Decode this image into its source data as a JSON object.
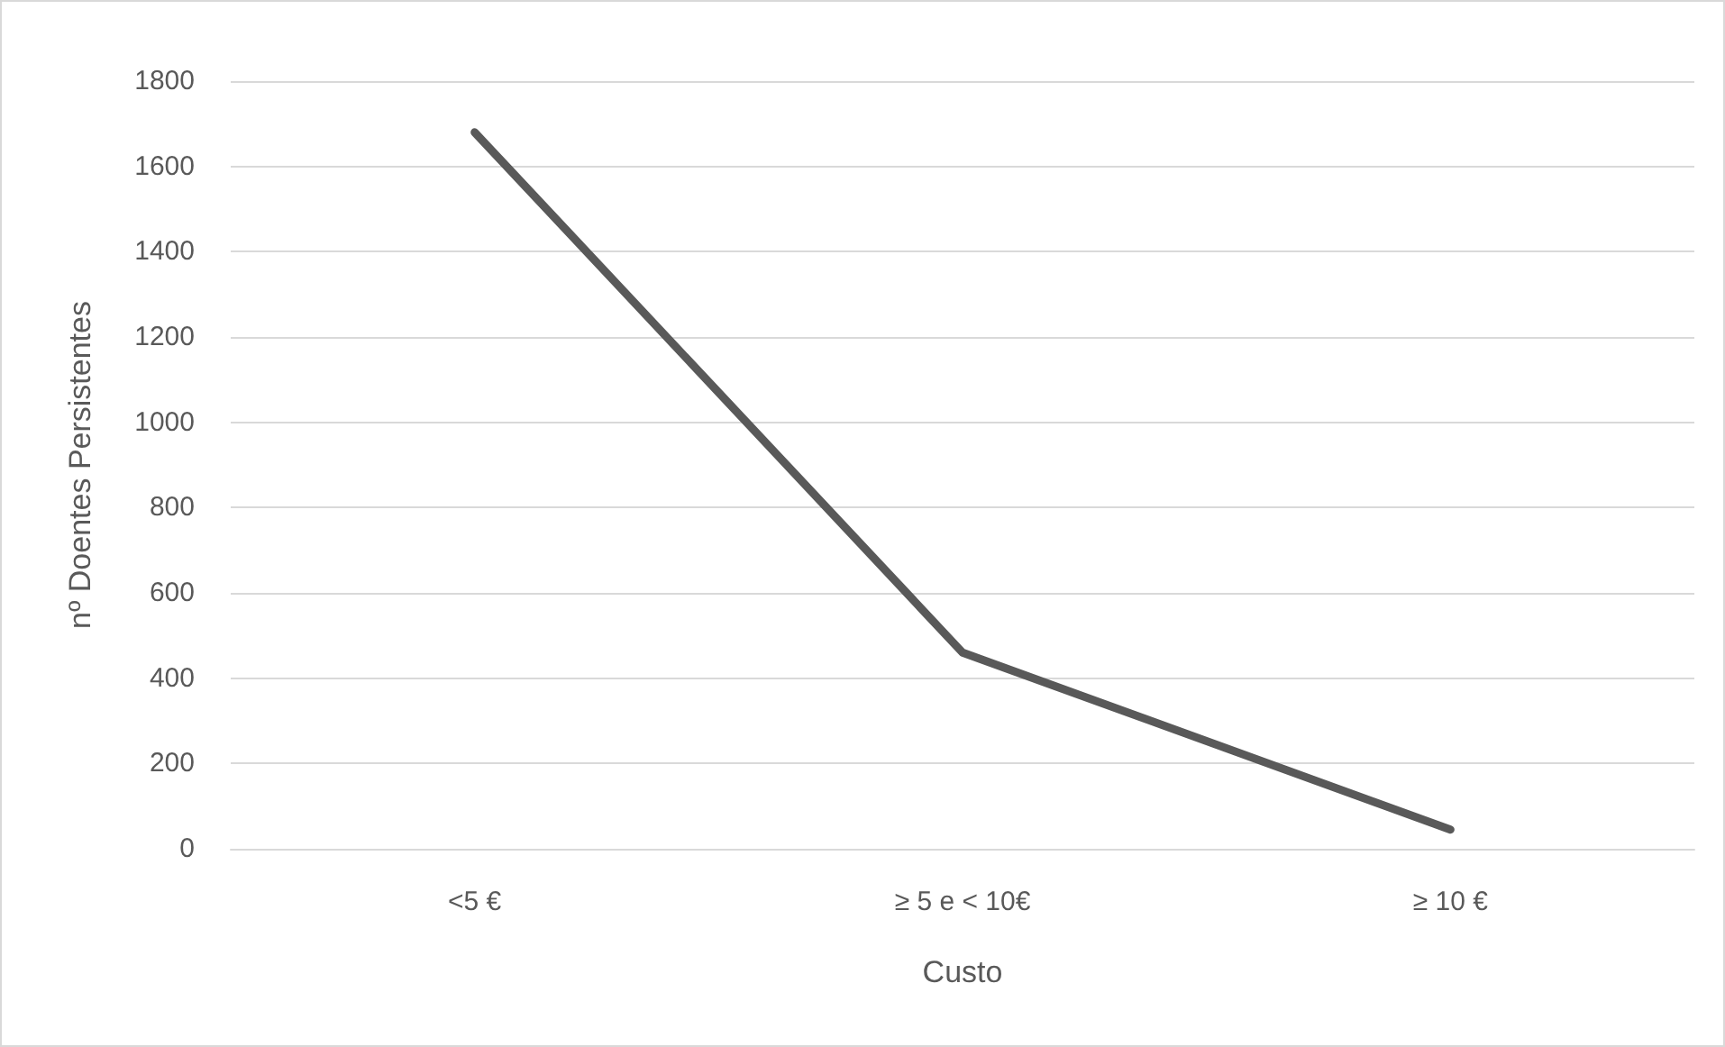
{
  "chart_data": {
    "type": "line",
    "xlabel": "Custo",
    "ylabel": "nº Doentes Persistentes",
    "categories": [
      "<5 €",
      "≥ 5 e < 10€",
      "≥ 10 €"
    ],
    "series": [
      {
        "color": "#595959",
        "values": [
          1680,
          460,
          45
        ]
      }
    ],
    "ylim": [
      0,
      1800
    ],
    "yticks": [
      0,
      200,
      400,
      600,
      800,
      1000,
      1200,
      1400,
      1600,
      1800
    ],
    "grid": "y",
    "marker": "none",
    "line_style": "solid"
  }
}
